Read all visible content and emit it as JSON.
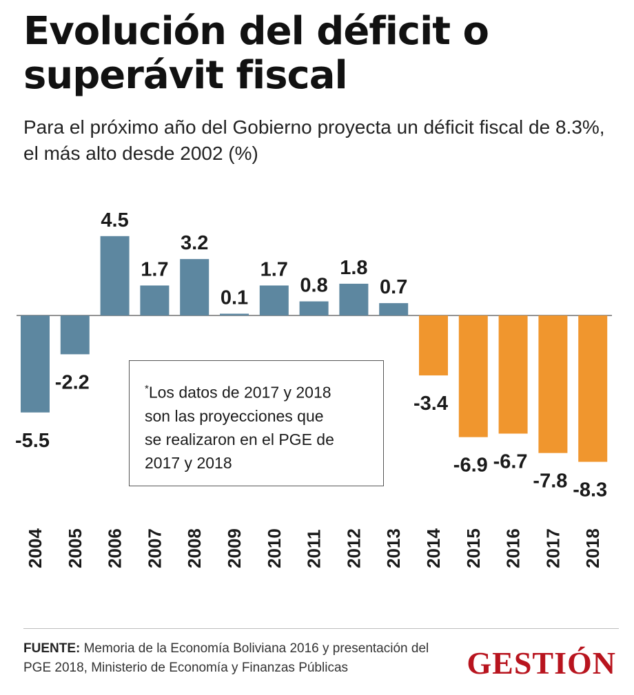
{
  "header": {
    "title": "Evolución del déficit o superávit fiscal",
    "subtitle": "Para el próximo año del Gobierno proyecta un déficit fiscal de 8.3%, el más alto desde 2002 (%)"
  },
  "colors": {
    "actual": "#5d87a0",
    "projection": "#f0962e"
  },
  "chart_data": {
    "type": "bar",
    "title": "Evolución del déficit o superávit fiscal",
    "subtitle": "Para el próximo año del Gobierno proyecta un déficit fiscal de 8.3%, el más alto desde 2002 (%)",
    "xlabel": "",
    "ylabel": "%",
    "categories": [
      "2004",
      "2005",
      "2006",
      "2007",
      "2008",
      "2009",
      "2010",
      "2011",
      "2012",
      "2013",
      "2014",
      "2015",
      "2016",
      "2017",
      "2018"
    ],
    "values": [
      -5.5,
      -2.2,
      4.5,
      1.7,
      3.2,
      0.1,
      1.7,
      0.8,
      1.8,
      0.7,
      -3.4,
      -6.9,
      -6.7,
      -7.8,
      -8.3
    ],
    "labels": [
      "-5.5",
      "-2.2",
      "4.5",
      "1.7",
      "3.2",
      "0.1",
      "1.7",
      "0.8",
      "1.8",
      "0.7",
      "-3.4",
      "-6.9",
      "-6.7",
      "-7.8",
      "-8.3"
    ],
    "series_color_by_category": [
      "actual",
      "actual",
      "actual",
      "actual",
      "actual",
      "actual",
      "actual",
      "actual",
      "actual",
      "actual",
      "projection",
      "projection",
      "projection",
      "projection",
      "projection"
    ],
    "ylim": [
      -8.3,
      4.5
    ],
    "grid": false,
    "legend": "none"
  },
  "note": {
    "marker": "*",
    "text": "Los datos de 2017 y 2018\nson las proyecciones que\nse realizaron  en el PGE de\n2017 y 2018"
  },
  "footer": {
    "source_label": "FUENTE:",
    "source_text": "Memoria de la Economía Boliviana 2016 y presentación del PGE 2018, Ministerio de Economía y Finanzas Públicas",
    "logo": "GESTIÓN"
  }
}
